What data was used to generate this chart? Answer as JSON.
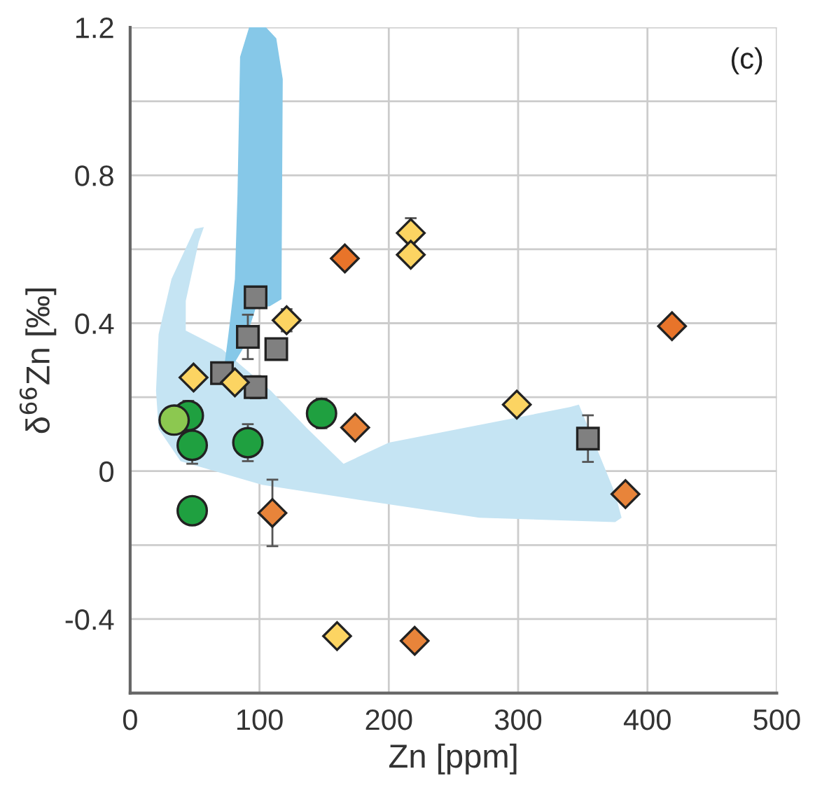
{
  "chart_data": {
    "type": "scatter",
    "xlabel": "Zn [ppm]",
    "ylabel": "δ$^{66}$Zn [‰]",
    "annotations": [
      "(c)"
    ],
    "xlim": [
      0,
      500
    ],
    "xticks": [
      0,
      100,
      200,
      300,
      400,
      500
    ],
    "ylim": [
      -0.6,
      1.2
    ],
    "yticks": [
      {
        "value": -0.6,
        "label": null
      },
      {
        "value": -0.4,
        "label": "-0.4"
      },
      {
        "value": -0.2,
        "label": null
      },
      0,
      {
        "value": 0.2,
        "label": null
      },
      0.4,
      {
        "value": 0.6,
        "label": null
      },
      0.8,
      {
        "value": 1.0,
        "label": null
      },
      1.2
    ],
    "grid": true,
    "series": [
      {
        "type": "area",
        "color": "#c5e4f3",
        "x": [
          20,
          22,
          32,
          50,
          57,
          53,
          43,
          43,
          71,
          109,
          137,
          165,
          200,
          340,
          347,
          375,
          380,
          375,
          270,
          172,
          102,
          39,
          22
        ],
        "values": [
          0.217,
          0.37,
          0.52,
          0.655,
          0.66,
          0.62,
          0.46,
          0.38,
          0.33,
          0.217,
          0.115,
          0.02,
          0.077,
          0.173,
          0.18,
          -0.06,
          -0.126,
          -0.138,
          -0.126,
          -0.075,
          -0.037,
          0.027,
          0.114
        ]
      },
      {
        "type": "area",
        "color": "#86c8e8",
        "x": [
          81,
          83,
          85,
          92,
          105,
          113,
          118,
          117,
          108,
          97,
          87,
          71,
          76
        ],
        "values": [
          0.52,
          0.75,
          1.12,
          1.2,
          1.2,
          1.17,
          1.06,
          0.465,
          0.446,
          0.44,
          0.33,
          0.236,
          0.37
        ]
      },
      {
        "marker": "circle",
        "color": "#1fa040",
        "x": [
          45,
          48,
          91,
          148,
          48
        ],
        "values": [
          0.15,
          0.07,
          0.077,
          0.156,
          -0.107
        ],
        "errors": [
          0.04,
          0.05,
          0.05,
          0.04,
          0.03
        ]
      },
      {
        "marker": "circle",
        "color": "#8cc850",
        "x": [
          34
        ],
        "values": [
          0.138
        ]
      },
      {
        "marker": "square",
        "color": "#808080",
        "x": [
          97,
          91,
          113,
          71,
          97,
          354
        ],
        "values": [
          0.47,
          0.363,
          0.33,
          0.265,
          0.227,
          0.088
        ],
        "errors": [
          0.02,
          0.06,
          0.02,
          null,
          0.03,
          0.063
        ]
      },
      {
        "marker": "diamond",
        "color": "#fcd462",
        "x": [
          49,
          81,
          121,
          217,
          217,
          299
        ],
        "values": [
          0.253,
          0.24,
          0.408,
          0.644,
          0.585,
          0.18
        ],
        "errors": [
          null,
          null,
          0.03,
          0.04,
          null,
          null
        ]
      },
      {
        "marker": "diamond",
        "color": "#e8742a",
        "x": [
          166,
          419
        ],
        "values": [
          0.575,
          0.392
        ]
      },
      {
        "marker": "diamond",
        "color": "#e8843a",
        "x": [
          174,
          110,
          383,
          220
        ],
        "values": [
          0.118,
          -0.113,
          -0.062,
          -0.459
        ],
        "errors": [
          0.02,
          0.09,
          null,
          0.02
        ]
      },
      {
        "marker": "diamond",
        "color": "#fcd462",
        "x": [
          160
        ],
        "values": [
          -0.446
        ]
      }
    ]
  }
}
